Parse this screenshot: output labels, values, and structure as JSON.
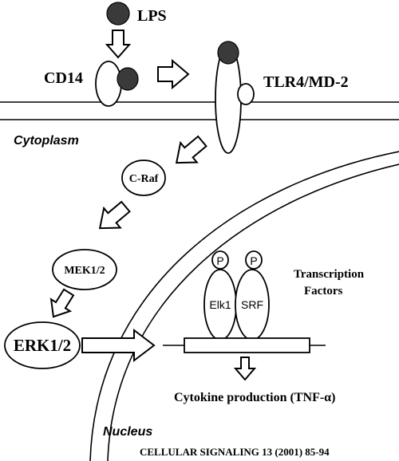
{
  "labels": {
    "lps": "LPS",
    "cd14": "CD14",
    "tlr4": "TLR4/MD-2",
    "cytoplasm": "Cytoplasm",
    "craf": "C-Raf",
    "mek": "MEK1/2",
    "erk": "ERK1/2",
    "p1": "P",
    "p2": "P",
    "elk1": "Elk1",
    "srf": "SRF",
    "tf_line1": "Transcription",
    "tf_line2": "Factors",
    "cytokine": "Cytokine production (TNF-α)",
    "nucleus": "Nucleus",
    "citation": "CELLULAR SIGNALING 13 (2001) 85-94"
  },
  "colors": {
    "lps_fill": "#3a3a3a",
    "stroke": "#000000",
    "background": "#ffffff"
  }
}
